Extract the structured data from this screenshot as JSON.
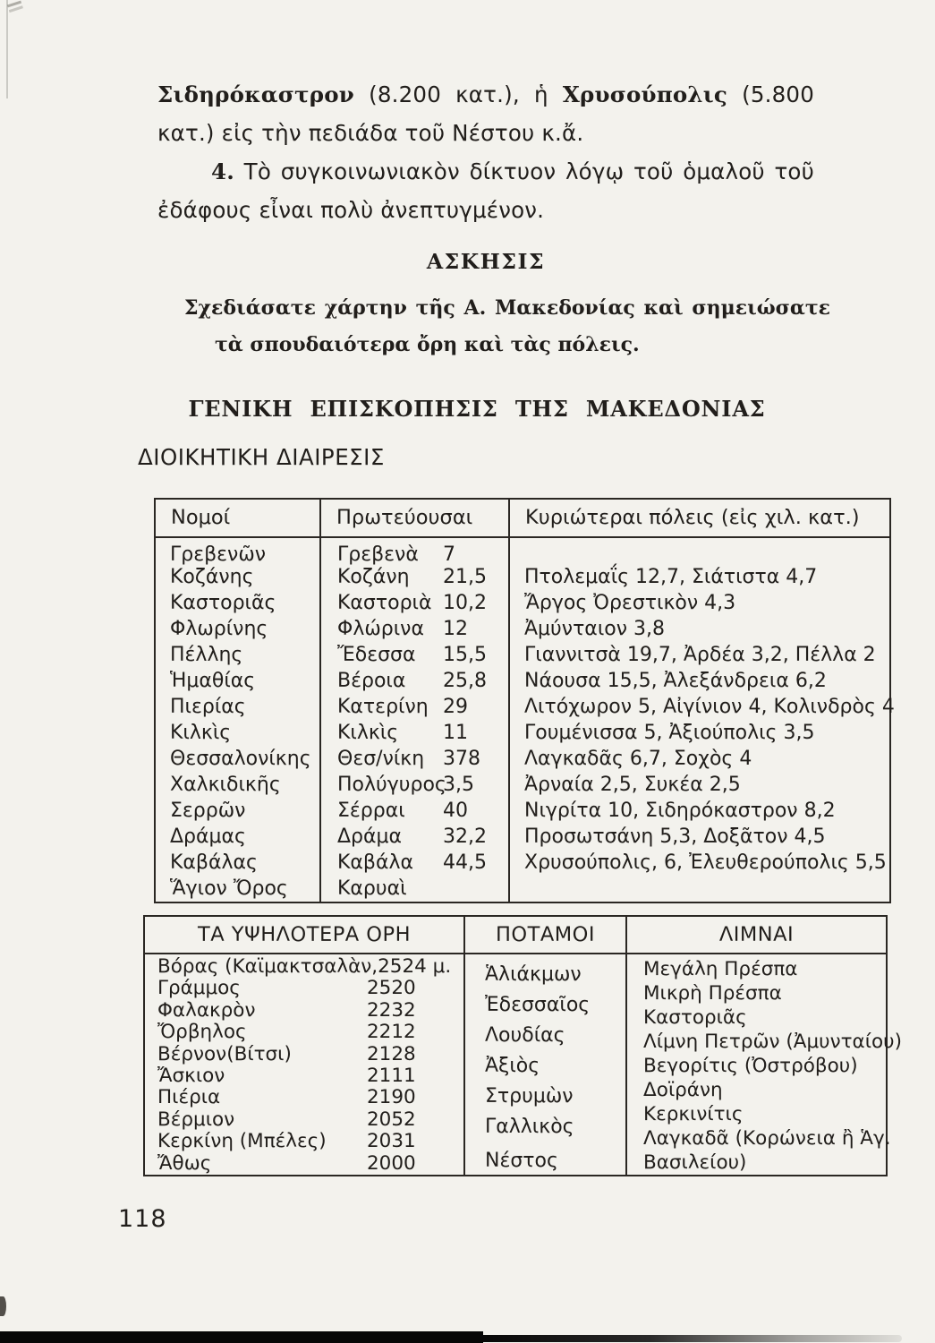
{
  "colors": {
    "paper": "#f3f2ed",
    "ink": "#211e1b"
  },
  "page": {
    "number": "118"
  },
  "intro": {
    "bold1": "Σιδηρόκαστρον",
    "mid1": " (8.200 κατ.), ἡ ",
    "bold2": "Χρυσούπολις",
    "rest": " (5.800 κατ.) εἰς τὴν πεδιάδα τοῦ Νέστου κ.ἄ.",
    "point_num": "4.",
    "point_text": " Τὸ συγκοινωνιακὸν δίκτυον λόγῳ τοῦ ὁμαλοῦ τοῦ ἐδάφους εἶναι πολὺ ἀνεπτυγμένον."
  },
  "exercise": {
    "title": "ΑΣΚΗΣΙΣ",
    "text": "Σχεδιάσατε χάρτην τῆς Α. Μακεδονίας καὶ σημειώσατε τὰ σπουδαιότερα ὄρη καὶ τὰς πόλεις."
  },
  "overview": {
    "title": "ΓΕΝΙΚΗ ΕΠΙΣΚΟΠΗΣΙΣ ΤΗΣ ΜΑΚΕΔΟΝΙΑΣ",
    "subtitle": "ΔΙΟΙΚΗΤΙΚΗ ΔΙΑΙΡΕΣΙΣ"
  },
  "admin_table": {
    "headers": [
      "Νομοί",
      "Πρωτεύουσαι",
      "Κυριώτεραι πόλεις (εἰς χιλ. κατ.)"
    ],
    "rows": [
      {
        "nomos": "Γρεβενῶν",
        "capital": "Γρεβενὰ",
        "population": "7",
        "cities": ""
      },
      {
        "nomos": "Κοζάνης",
        "capital": "Κοζάνη",
        "population": "21,5",
        "cities": "Πτολεμαΐς 12,7, Σιάτιστα 4,7"
      },
      {
        "nomos": "Καστοριᾶς",
        "capital": "Καστοριὰ",
        "population": "10,2",
        "cities": "Ἄργος Ὀρεστικὸν 4,3"
      },
      {
        "nomos": "Φλωρίνης",
        "capital": "Φλώρινα",
        "population": "12",
        "cities": "Ἀμύνταιον 3,8"
      },
      {
        "nomos": "Πέλλης",
        "capital": "Ἔδεσσα",
        "population": "15,5",
        "cities": "Γιαννιτσὰ 19,7, Ἀρδέα 3,2, Πέλλα 2"
      },
      {
        "nomos": "Ἡμαθίας",
        "capital": "Βέροια",
        "population": "25,8",
        "cities": "Νάουσα 15,5, Ἀλεξάνδρεια 6,2"
      },
      {
        "nomos": "Πιερίας",
        "capital": "Κατερίνη",
        "population": "29",
        "cities": "Λιτόχωρον 5, Αἰγίνιον 4, Κολινδρὸς 4"
      },
      {
        "nomos": "Κιλκὶς",
        "capital": "Κιλκὶς",
        "population": "11",
        "cities": "Γουμένισσα 5, Ἀξιούπολις 3,5"
      },
      {
        "nomos": "Θεσσαλονίκης",
        "capital": "Θεσ/νίκη",
        "population": "378",
        "cities": "Λαγκαδᾶς 6,7, Σοχὸς 4"
      },
      {
        "nomos": "Χαλκιδικῆς",
        "capital": "Πολύγυρος",
        "population": "3,5",
        "cities": "Ἀρναία 2,5, Συκέα 2,5"
      },
      {
        "nomos": "Σερρῶν",
        "capital": "Σέρραι",
        "population": "40",
        "cities": "Νιγρίτα 10, Σιδηρόκαστρον 8,2"
      },
      {
        "nomos": "Δράμας",
        "capital": "Δράμα",
        "population": "32,2",
        "cities": "Προσωτσάνη 5,3, Δοξᾶτον 4,5"
      },
      {
        "nomos": "Καβάλας",
        "capital": "Καβάλα",
        "population": "44,5",
        "cities": "Χρυσούπολις, 6, Ἐλευθερούπολις 5,5"
      },
      {
        "nomos": "Ἅγιον Ὄρος",
        "capital": "Καρυαὶ",
        "population": "",
        "cities": ""
      }
    ]
  },
  "geo_table": {
    "headers": [
      "ΤΑ ΥΨΗΛΟΤΕΡΑ ΟΡΗ",
      "ΠΟΤΑΜΟΙ",
      "ΛΙΜΝΑΙ"
    ],
    "mountains": [
      {
        "name": "Βόρας (Καϊμακτσαλὰν,",
        "height": "2524 μ."
      },
      {
        "name": "Γράμμος",
        "height": "2520"
      },
      {
        "name": "Φαλακρὸν",
        "height": "2232"
      },
      {
        "name": "Ὄρβηλος",
        "height": "2212"
      },
      {
        "name": "Βέρνον(Βίτσι)",
        "height": "2128"
      },
      {
        "name": "Ἄσκιον",
        "height": "2111"
      },
      {
        "name": "Πιέρια",
        "height": "2190"
      },
      {
        "name": "Βέρμιον",
        "height": "2052"
      },
      {
        "name": "Κερκίνη (Μπέλες)",
        "height": "2031"
      },
      {
        "name": "Ἄθως",
        "height": "2000"
      }
    ],
    "rivers": [
      "Ἁλιάκμων",
      "Ἐδεσσαῖος",
      "Λουδίας",
      "Ἀξιὸς",
      "Στρυμὼν",
      "Γαλλικὸς",
      "Νέστος"
    ],
    "lakes": [
      "Μεγάλη Πρέσπα",
      "Μικρὴ Πρέσπα",
      "Καστοριᾶς",
      "Λίμνη Πετρῶν (Ἀμυνταίου)",
      "Βεγορίτις (Ὀστρόβου)",
      "Δοϊράνη",
      "Κερκινίτις",
      "Λαγκαδᾶ (Κορώνεια ἢ Ἁγ. Βασιλείου)"
    ]
  }
}
